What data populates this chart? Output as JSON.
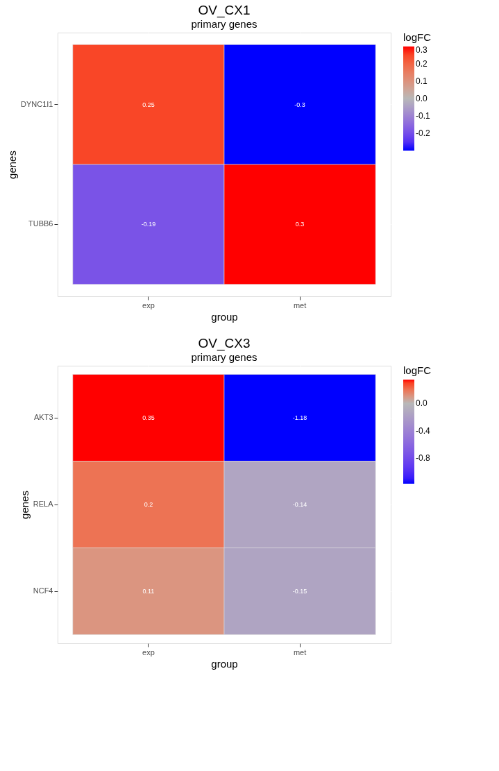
{
  "chart_data": [
    {
      "type": "heatmap",
      "title": "OV_CX1",
      "subtitle": "primary genes",
      "xlabel": "group",
      "ylabel": "genes",
      "clabel": "logFC",
      "categories": [
        "exp",
        "met"
      ],
      "y_categories": [
        "DYNC1I1",
        "TUBB6"
      ],
      "cells": [
        [
          0.25,
          -0.3
        ],
        [
          -0.19,
          0.3
        ]
      ],
      "clim": [
        -0.3,
        0.3
      ],
      "cticks": [
        -0.2,
        -0.1,
        {
          "value": 0,
          "label": "0.0"
        },
        0.1,
        0.2,
        0.3
      ],
      "data_labels": true,
      "grid": true
    },
    {
      "type": "heatmap",
      "title": "OV_CX3",
      "subtitle": "primary genes",
      "xlabel": "group",
      "ylabel": "genes",
      "clabel": "logFC",
      "categories": [
        "exp",
        "met"
      ],
      "y_categories": [
        "AKT3",
        "RELA",
        "NCF4"
      ],
      "cells": [
        [
          0.35,
          -1.18
        ],
        [
          0.2,
          -0.14
        ],
        [
          0.11,
          -0.15
        ]
      ],
      "clim": [
        -1.18,
        0.35
      ],
      "cticks": [
        -0.8,
        -0.4,
        {
          "value": 0,
          "label": "0.0"
        }
      ],
      "data_labels": true,
      "grid": true
    }
  ]
}
